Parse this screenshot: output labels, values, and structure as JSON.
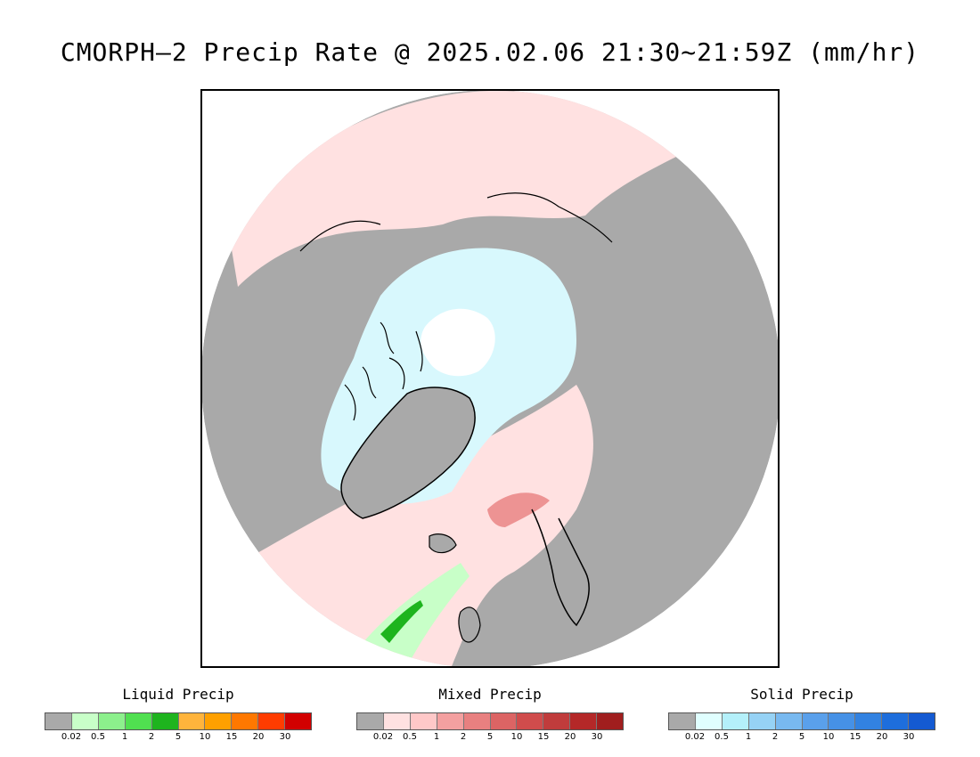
{
  "title": "CMORPH–2 Precip Rate @ 2025.02.06 21:30~21:59Z (mm/hr)",
  "colors": {
    "no_precip": "#a9a9a9",
    "light_mixed": "#ffe1e1",
    "light_solid": "#d8f8fd",
    "coast": "#000000"
  },
  "legends": [
    {
      "title": "Liquid Precip",
      "colors": [
        "#a9a9a9",
        "#c8ffc8",
        "#8cf08c",
        "#50e050",
        "#1eb41e",
        "#ffb43c",
        "#ffa000",
        "#ff7800",
        "#ff3c00",
        "#d20000"
      ],
      "ticks": [
        "0.02",
        "0.5",
        "1",
        "2",
        "5",
        "10",
        "15",
        "20",
        "30"
      ]
    },
    {
      "title": "Mixed Precip",
      "colors": [
        "#a9a9a9",
        "#ffe1e1",
        "#ffc8c8",
        "#f4a0a0",
        "#e88080",
        "#dc6464",
        "#d04c4c",
        "#c03c3c",
        "#b42828",
        "#a01e1e"
      ],
      "ticks": [
        "0.02",
        "0.5",
        "1",
        "2",
        "5",
        "10",
        "15",
        "20",
        "30"
      ]
    },
    {
      "title": "Solid Precip",
      "colors": [
        "#a9a9a9",
        "#e0ffff",
        "#b4f0fa",
        "#96d2f5",
        "#78b9f0",
        "#5aa0eb",
        "#4691e6",
        "#3282e1",
        "#1e6edc",
        "#145ad2"
      ],
      "ticks": [
        "0.02",
        "0.5",
        "1",
        "2",
        "5",
        "10",
        "15",
        "20",
        "30"
      ]
    }
  ]
}
